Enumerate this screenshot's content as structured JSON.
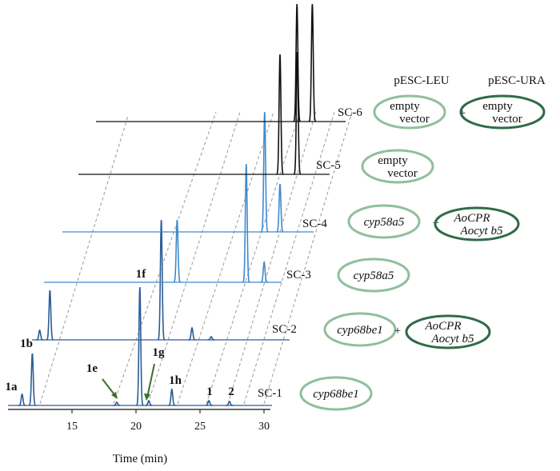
{
  "chart_data": {
    "type": "chromatogram",
    "x_label": "Time (min)",
    "xlim": [
      10,
      30.5
    ],
    "xticks": [
      15,
      20,
      25,
      30
    ],
    "plasmid_headers": [
      "pESC-LEU",
      "pESC-URA"
    ],
    "peak_labels": [
      {
        "label": "1a",
        "x": 11.1
      },
      {
        "label": "1b",
        "x": 11.9
      },
      {
        "label": "1e",
        "x": 18.5
      },
      {
        "label": "1f",
        "x": 20.3
      },
      {
        "label": "1g",
        "x": 21.0
      },
      {
        "label": "1h",
        "x": 22.8
      },
      {
        "label": "1",
        "x": 25.7
      },
      {
        "label": "2",
        "x": 27.3
      }
    ],
    "traces": [
      {
        "name": "SC-1",
        "color": "#2b5c97",
        "leu": [
          "cyp68be1"
        ],
        "ura": null,
        "peaks": [
          {
            "x": 11.1,
            "height": 14
          },
          {
            "x": 11.9,
            "height": 65
          },
          {
            "x": 18.5,
            "height": 4
          },
          {
            "x": 20.3,
            "height": 148
          },
          {
            "x": 21.0,
            "height": 6
          },
          {
            "x": 22.8,
            "height": 20
          },
          {
            "x": 25.7,
            "height": 6
          },
          {
            "x": 27.3,
            "height": 5
          }
        ]
      },
      {
        "name": "SC-2",
        "color": "#2b5c97",
        "leu": [
          "cyp68be1"
        ],
        "ura": [
          "AoCPR",
          "Aocyt b5"
        ],
        "peaks": [
          {
            "x": 10.6,
            "height": 12
          },
          {
            "x": 11.4,
            "height": 62
          },
          {
            "x": 20.1,
            "height": 150
          },
          {
            "x": 22.5,
            "height": 15
          },
          {
            "x": 24.0,
            "height": 4
          }
        ]
      },
      {
        "name": "SC-3",
        "color": "#3f8bd0",
        "leu": [
          "cyp58a5"
        ],
        "ura": null,
        "peaks": [
          {
            "x": 20.4,
            "height": 78
          },
          {
            "x": 25.8,
            "height": 148
          },
          {
            "x": 27.2,
            "height": 25
          }
        ]
      },
      {
        "name": "SC-4",
        "color": "#3f8bd0",
        "leu": [
          "cyp58a5"
        ],
        "ura": [
          "AoCPR",
          "Aocyt b5"
        ],
        "peaks": [
          {
            "x": 25.8,
            "height": 150
          },
          {
            "x": 27.0,
            "height": 60
          }
        ]
      },
      {
        "name": "SC-5",
        "color": "#111111",
        "leu": [
          "empty",
          "vector"
        ],
        "ura": null,
        "peaks": [
          {
            "x": 25.75,
            "height": 150
          },
          {
            "x": 27.1,
            "height": 153
          }
        ]
      },
      {
        "name": "SC-6",
        "color": "#111111",
        "leu": [
          "empty",
          "vector"
        ],
        "ura": [
          "empty",
          "vector"
        ],
        "peaks": [
          {
            "x": 25.7,
            "height": 147
          },
          {
            "x": 26.9,
            "height": 147
          }
        ]
      }
    ]
  }
}
